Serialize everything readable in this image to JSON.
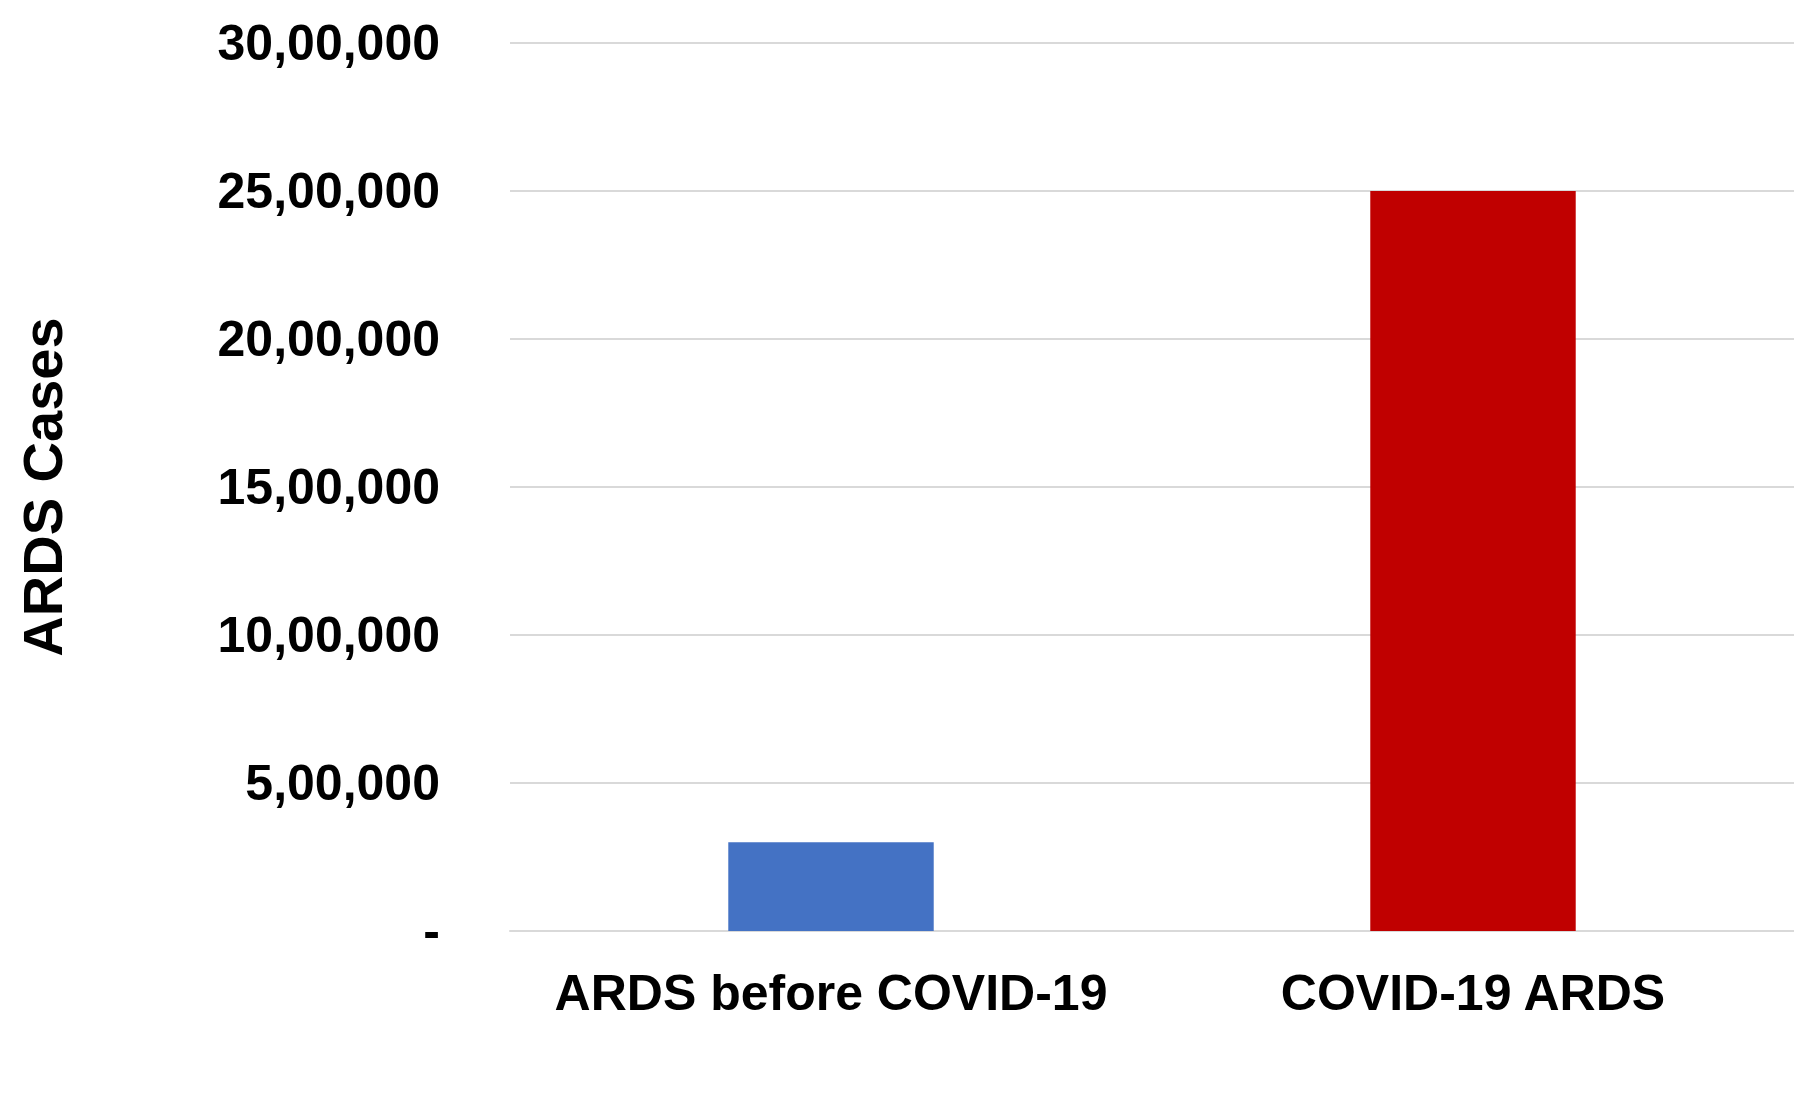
{
  "chart_data": {
    "type": "bar",
    "ylabel": "ARDS Cases",
    "categories": [
      "ARDS before COVID-19",
      "COVID-19 ARDS"
    ],
    "values": [
      300000,
      2500000
    ],
    "colors": [
      "#4472c4",
      "#c00000"
    ],
    "ylim": [
      0,
      3000000
    ],
    "yticks": [
      {
        "value": 0,
        "label": "-"
      },
      {
        "value": 500000,
        "label": "5,00,000"
      },
      {
        "value": 1000000,
        "label": "10,00,000"
      },
      {
        "value": 1500000,
        "label": "15,00,000"
      },
      {
        "value": 2000000,
        "label": "20,00,000"
      },
      {
        "value": 2500000,
        "label": "25,00,000"
      },
      {
        "value": 3000000,
        "label": "30,00,000"
      }
    ],
    "grid": true
  }
}
